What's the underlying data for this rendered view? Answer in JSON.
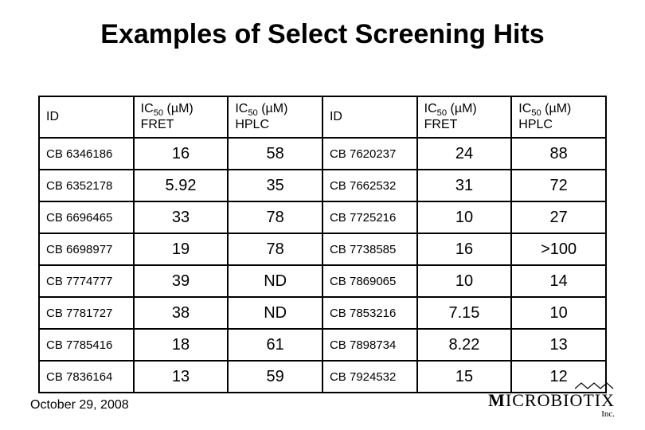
{
  "title": "Examples of Select Screening Hits",
  "footer_date": "October 29, 2008",
  "logo_text": "MICROBIOTIX",
  "logo_inc": "Inc.",
  "headers": {
    "id": "ID",
    "fret_prefix": "IC",
    "fret_sub": "50",
    "fret_suffix": " (µM) FRET",
    "hplc_prefix": "IC",
    "hplc_sub": "50",
    "hplc_suffix": " (µM) HPLC"
  },
  "rows": [
    {
      "id_l": "CB 6346186",
      "fret_l": "16",
      "hplc_l": "58",
      "id_r": "CB 7620237",
      "fret_r": "24",
      "hplc_r": "88"
    },
    {
      "id_l": "CB 6352178",
      "fret_l": "5.92",
      "hplc_l": "35",
      "id_r": "CB 7662532",
      "fret_r": "31",
      "hplc_r": "72"
    },
    {
      "id_l": "CB 6696465",
      "fret_l": "33",
      "hplc_l": "78",
      "id_r": "CB 7725216",
      "fret_r": "10",
      "hplc_r": "27"
    },
    {
      "id_l": "CB 6698977",
      "fret_l": "19",
      "hplc_l": "78",
      "id_r": "CB 7738585",
      "fret_r": "16",
      "hplc_r": ">100"
    },
    {
      "id_l": "CB 7774777",
      "fret_l": "39",
      "hplc_l": "ND",
      "id_r": "CB 7869065",
      "fret_r": "10",
      "hplc_r": "14"
    },
    {
      "id_l": "CB 7781727",
      "fret_l": "38",
      "hplc_l": "ND",
      "id_r": "CB 7853216",
      "fret_r": "7.15",
      "hplc_r": "10"
    },
    {
      "id_l": "CB 7785416",
      "fret_l": "18",
      "hplc_l": "61",
      "id_r": "CB 7898734",
      "fret_r": "8.22",
      "hplc_r": "13"
    },
    {
      "id_l": "CB 7836164",
      "fret_l": "13",
      "hplc_l": "59",
      "id_r": "CB 7924532",
      "fret_r": "15",
      "hplc_r": "12"
    }
  ]
}
